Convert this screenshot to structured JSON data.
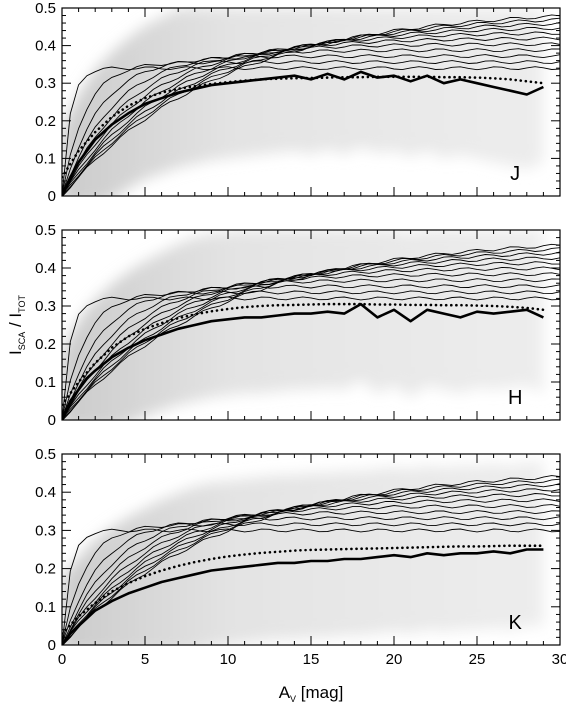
{
  "chart_data": {
    "type": "line",
    "xlabel": {
      "main": "A",
      "sub": "V",
      "rest": " [mag]"
    },
    "ylabel": {
      "num_main": "I",
      "num_sub": "SCA",
      "sep": " / ",
      "den_main": "I",
      "den_sub": "TOT"
    },
    "xlim": [
      0,
      30
    ],
    "ylim": [
      0,
      0.5
    ],
    "x_ticks": [
      "0",
      "5",
      "10",
      "15",
      "20",
      "25",
      "30"
    ],
    "y_ticks": [
      "0",
      "0.1",
      "0.2",
      "0.3",
      "0.4",
      "0.5"
    ],
    "grid": false,
    "panels": [
      {
        "band": "J",
        "series": [
          {
            "style": "solid",
            "x": [
              0,
              0.5,
              1,
              1.5,
              2,
              3,
              4,
              5,
              6,
              7,
              8,
              9,
              10,
              11,
              12,
              13,
              14,
              15,
              16,
              17,
              18,
              19,
              20,
              21,
              22,
              23,
              24,
              25,
              26,
              27,
              28,
              29
            ],
            "y": [
              0.0,
              0.05,
              0.09,
              0.12,
              0.15,
              0.19,
              0.22,
              0.245,
              0.26,
              0.275,
              0.285,
              0.295,
              0.3,
              0.305,
              0.31,
              0.315,
              0.32,
              0.31,
              0.325,
              0.31,
              0.33,
              0.315,
              0.32,
              0.305,
              0.32,
              0.3,
              0.31,
              0.3,
              0.29,
              0.28,
              0.27,
              0.29
            ]
          },
          {
            "style": "dotted",
            "x": [
              0,
              1,
              2,
              3,
              4,
              5,
              6,
              7,
              8,
              9,
              10,
              11,
              12,
              13,
              14,
              15,
              16,
              17,
              18,
              19,
              20,
              21,
              22,
              23,
              24,
              25,
              26,
              27,
              28,
              29
            ],
            "y": [
              0.05,
              0.12,
              0.17,
              0.21,
              0.24,
              0.26,
              0.275,
              0.285,
              0.292,
              0.298,
              0.303,
              0.307,
              0.31,
              0.312,
              0.313,
              0.314,
              0.315,
              0.316,
              0.316,
              0.317,
              0.317,
              0.317,
              0.317,
              0.316,
              0.316,
              0.315,
              0.313,
              0.31,
              0.305,
              0.3
            ]
          }
        ]
      },
      {
        "band": "H",
        "series": [
          {
            "style": "solid",
            "x": [
              0,
              0.5,
              1,
              1.5,
              2,
              3,
              4,
              5,
              6,
              7,
              8,
              9,
              10,
              11,
              12,
              13,
              14,
              15,
              16,
              17,
              18,
              19,
              20,
              21,
              22,
              23,
              24,
              25,
              26,
              27,
              28,
              29
            ],
            "y": [
              0.0,
              0.05,
              0.08,
              0.11,
              0.13,
              0.165,
              0.19,
              0.21,
              0.225,
              0.24,
              0.25,
              0.26,
              0.265,
              0.27,
              0.27,
              0.275,
              0.28,
              0.28,
              0.285,
              0.28,
              0.305,
              0.27,
              0.29,
              0.26,
              0.29,
              0.28,
              0.27,
              0.285,
              0.28,
              0.285,
              0.29,
              0.27
            ]
          },
          {
            "style": "dotted",
            "x": [
              0,
              1,
              2,
              3,
              4,
              5,
              6,
              7,
              8,
              9,
              10,
              11,
              12,
              13,
              14,
              15,
              16,
              17,
              18,
              19,
              20,
              21,
              22,
              23,
              24,
              25,
              26,
              27,
              28,
              29
            ],
            "y": [
              0.04,
              0.1,
              0.15,
              0.19,
              0.22,
              0.24,
              0.255,
              0.268,
              0.278,
              0.286,
              0.292,
              0.297,
              0.3,
              0.302,
              0.303,
              0.304,
              0.305,
              0.305,
              0.305,
              0.304,
              0.304,
              0.303,
              0.303,
              0.302,
              0.302,
              0.301,
              0.3,
              0.298,
              0.295,
              0.29
            ]
          }
        ]
      },
      {
        "band": "K",
        "series": [
          {
            "style": "solid",
            "x": [
              0,
              0.5,
              1,
              1.5,
              2,
              3,
              4,
              5,
              6,
              7,
              8,
              9,
              10,
              11,
              12,
              13,
              14,
              15,
              16,
              17,
              18,
              19,
              20,
              21,
              22,
              23,
              24,
              25,
              26,
              27,
              28,
              29
            ],
            "y": [
              0.0,
              0.03,
              0.05,
              0.07,
              0.09,
              0.115,
              0.135,
              0.15,
              0.165,
              0.175,
              0.185,
              0.195,
              0.2,
              0.205,
              0.21,
              0.215,
              0.215,
              0.22,
              0.22,
              0.225,
              0.225,
              0.23,
              0.235,
              0.23,
              0.24,
              0.235,
              0.24,
              0.24,
              0.245,
              0.24,
              0.25,
              0.25
            ]
          },
          {
            "style": "dotted",
            "x": [
              0,
              1,
              2,
              3,
              4,
              5,
              6,
              7,
              8,
              9,
              10,
              11,
              12,
              13,
              14,
              15,
              16,
              17,
              18,
              19,
              20,
              21,
              22,
              23,
              24,
              25,
              26,
              27,
              28,
              29
            ],
            "y": [
              0.03,
              0.075,
              0.11,
              0.14,
              0.162,
              0.18,
              0.195,
              0.207,
              0.217,
              0.225,
              0.232,
              0.237,
              0.241,
              0.244,
              0.247,
              0.249,
              0.25,
              0.251,
              0.252,
              0.253,
              0.254,
              0.255,
              0.256,
              0.257,
              0.258,
              0.258,
              0.259,
              0.26,
              0.26,
              0.26
            ]
          }
        ]
      }
    ]
  }
}
